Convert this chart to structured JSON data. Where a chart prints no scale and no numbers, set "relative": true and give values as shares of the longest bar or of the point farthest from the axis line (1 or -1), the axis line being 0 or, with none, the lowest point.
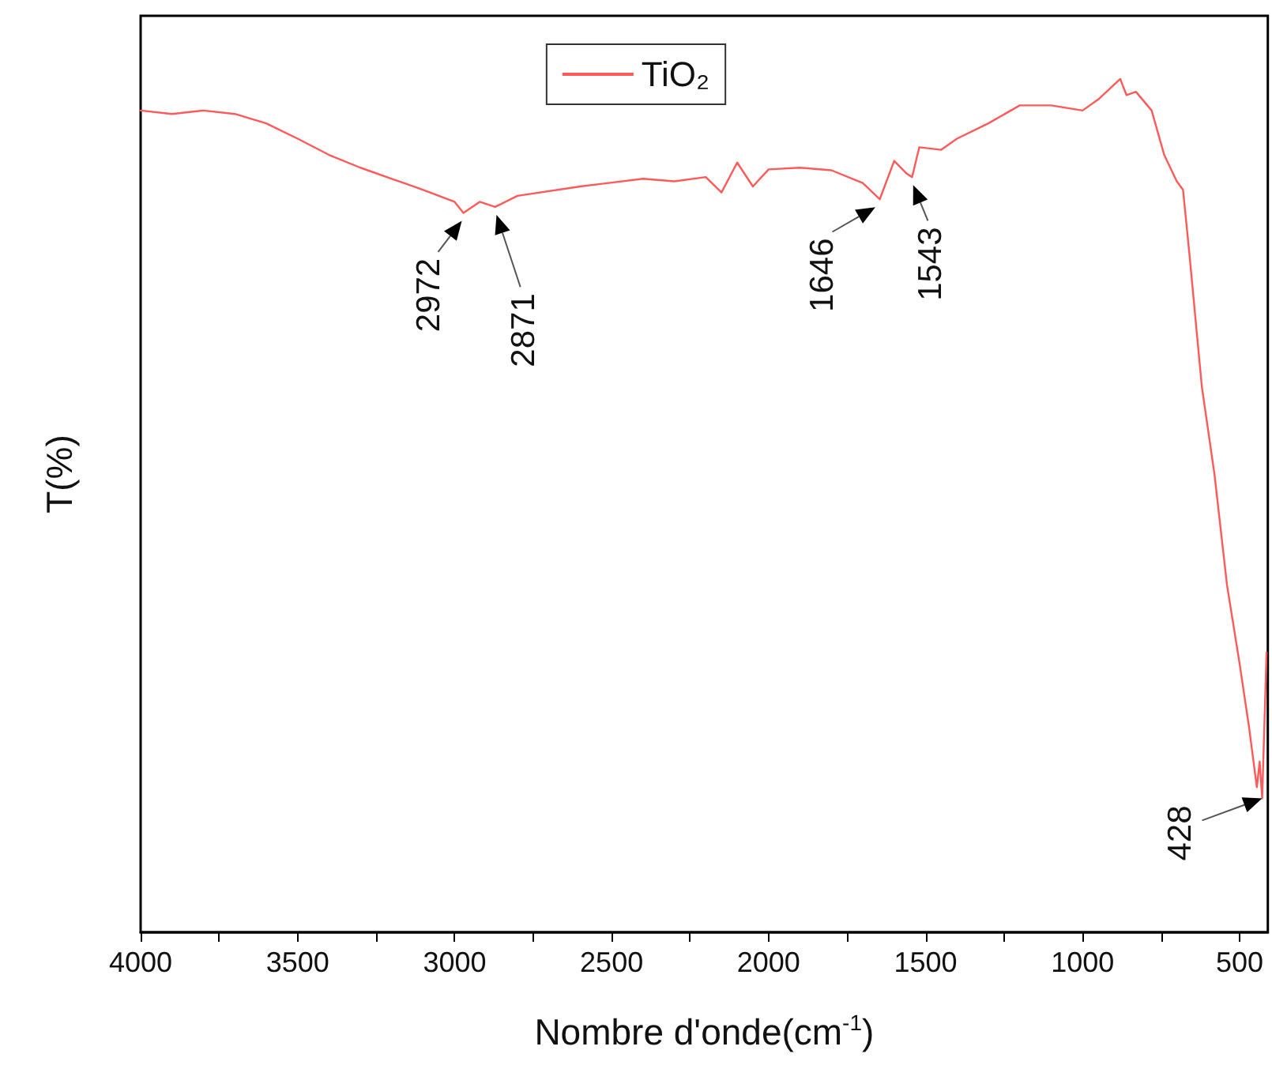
{
  "chart_data": {
    "type": "line",
    "relative": true,
    "xlabel": "Nombre d'onde(cm$^{-1}$)",
    "ylabel": "T(%)",
    "xlim": [
      4000,
      410
    ],
    "xticks": [
      4000,
      {
        "value": 3750,
        "label": null
      },
      3500,
      {
        "value": 3250,
        "label": null
      },
      3000,
      {
        "value": 2750,
        "label": null
      },
      2500,
      {
        "value": 2250,
        "label": null
      },
      2000,
      {
        "value": 1750,
        "label": null
      },
      1500,
      {
        "value": 1250,
        "label": null
      },
      1000,
      {
        "value": 750,
        "label": null
      },
      500
    ],
    "legend": "top",
    "grid": false,
    "marker": "none",
    "line_style": "solid",
    "series": [
      {
        "name": "TiO₂",
        "color": "#ff5a5a",
        "x": [
          4000,
          3900,
          3800,
          3700,
          3600,
          3500,
          3400,
          3300,
          3200,
          3100,
          3000,
          2972,
          2920,
          2871,
          2800,
          2600,
          2400,
          2300,
          2200,
          2150,
          2100,
          2050,
          2000,
          1900,
          1800,
          1700,
          1646,
          1600,
          1560,
          1543,
          1520,
          1450,
          1400,
          1300,
          1200,
          1100,
          1000,
          950,
          880,
          860,
          830,
          780,
          740,
          700,
          680,
          660,
          620,
          580,
          540,
          500,
          470,
          445,
          436,
          428,
          414
        ],
        "values": [
          0.963,
          0.959,
          0.963,
          0.959,
          0.948,
          0.93,
          0.911,
          0.896,
          0.883,
          0.87,
          0.856,
          0.843,
          0.856,
          0.85,
          0.863,
          0.874,
          0.883,
          0.88,
          0.885,
          0.867,
          0.902,
          0.874,
          0.894,
          0.896,
          0.893,
          0.878,
          0.859,
          0.904,
          0.889,
          0.885,
          0.92,
          0.917,
          0.93,
          0.948,
          0.969,
          0.969,
          0.963,
          0.976,
          1,
          0.981,
          0.985,
          0.963,
          0.911,
          0.88,
          0.87,
          0.796,
          0.639,
          0.537,
          0.407,
          0.315,
          0.241,
          0.17,
          0.2,
          0.157,
          0.328
        ]
      }
    ],
    "annotations": [
      {
        "text": "2972",
        "x": 2972,
        "y": 0.843
      },
      {
        "text": "2871",
        "x": 2871,
        "y": 0.85
      },
      {
        "text": "1646",
        "x": 1646,
        "y": 0.859
      },
      {
        "text": "1543",
        "x": 1543,
        "y": 0.885
      },
      {
        "text": "428",
        "x": 428,
        "y": 0.157
      }
    ]
  }
}
